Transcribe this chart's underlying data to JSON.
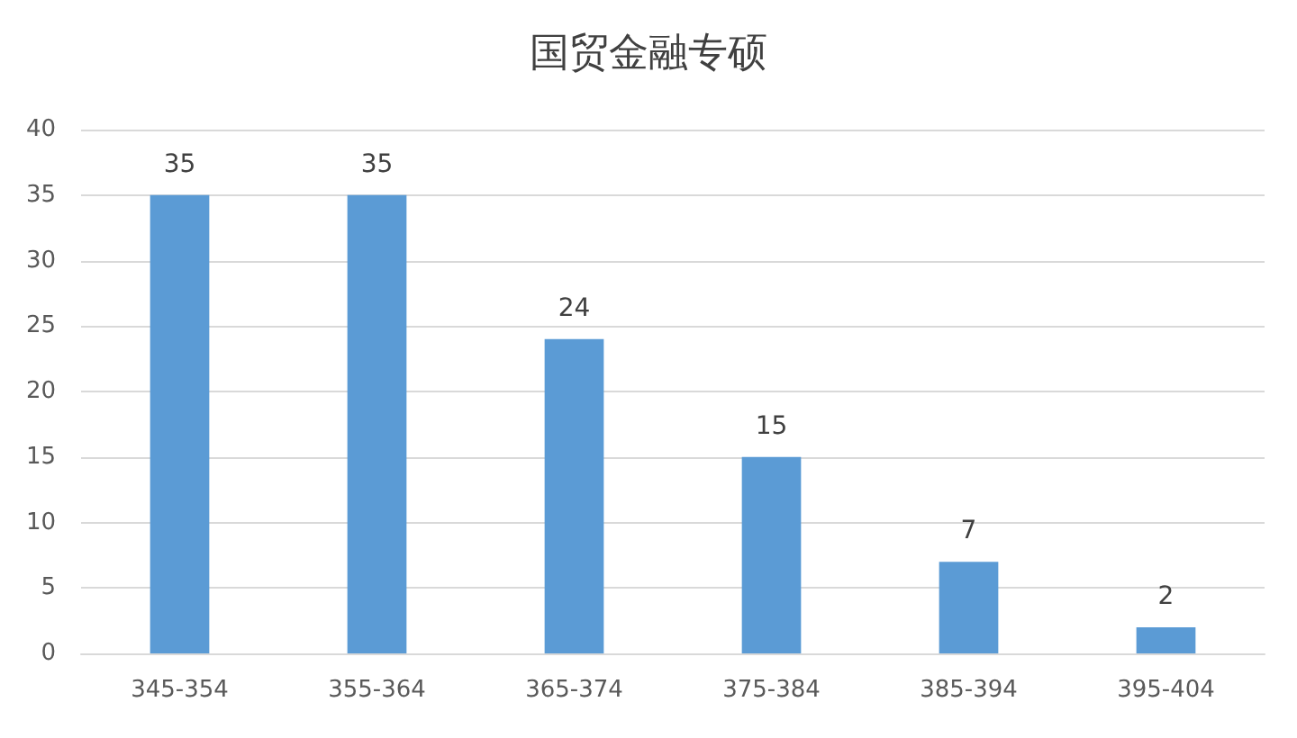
{
  "chart_data": {
    "type": "bar",
    "title": "国贸金融专硕",
    "categories": [
      "345-354",
      "355-364",
      "365-374",
      "375-384",
      "385-394",
      "395-404"
    ],
    "values": [
      35,
      35,
      24,
      15,
      7,
      2
    ],
    "color": "#5b9bd5",
    "ylim": [
      0,
      40
    ],
    "yticks": [
      0,
      5,
      10,
      15,
      20,
      25,
      30,
      35,
      40
    ],
    "grid": "y",
    "data_labels": true
  }
}
